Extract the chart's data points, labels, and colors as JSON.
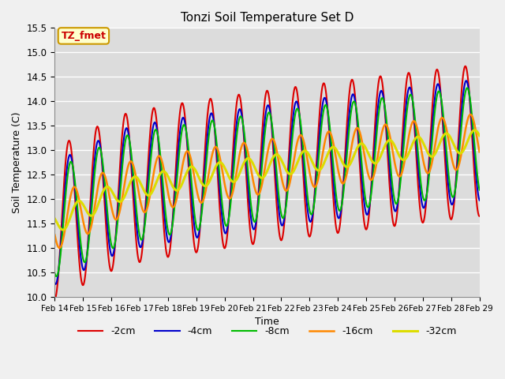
{
  "title": "Tonzi Soil Temperature Set D",
  "xlabel": "Time",
  "ylabel": "Soil Temperature (C)",
  "ylim": [
    10.0,
    15.5
  ],
  "xlim": [
    0,
    15
  ],
  "plot_bg_color": "#dcdcdc",
  "fig_bg_color": "#f0f0f0",
  "annotation_text": "TZ_fmet",
  "annotation_bg": "#ffffcc",
  "annotation_border": "#cc9900",
  "annotation_text_color": "#cc0000",
  "x_tick_labels": [
    "Feb 14",
    "Feb 15",
    "Feb 16",
    "Feb 17",
    "Feb 18",
    "Feb 19",
    "Feb 20",
    "Feb 21",
    "Feb 22",
    "Feb 23",
    "Feb 24",
    "Feb 25",
    "Feb 26",
    "Feb 27",
    "Feb 28",
    "Feb 29"
  ],
  "series_colors": [
    "#dd0000",
    "#0000cc",
    "#00bb00",
    "#ff8800",
    "#dddd00"
  ],
  "series_labels": [
    "-2cm",
    "-4cm",
    "-8cm",
    "-16cm",
    "-32cm"
  ],
  "series_linewidths": [
    1.5,
    1.5,
    1.5,
    1.8,
    2.2
  ],
  "n_points": 1600,
  "trend_start": 11.5,
  "trend_end": 13.2,
  "trend_flat_until": 0.15,
  "trend_flat_value": 12.15,
  "amplitude_2cm": 1.55,
  "amplitude_4cm": 1.25,
  "amplitude_8cm": 1.1,
  "amplitude_16cm": 0.55,
  "amplitude_32cm": 0.22,
  "phase_2cm": 1.57,
  "phase_4cm": 1.77,
  "phase_8cm": 1.97,
  "phase_16cm": 2.7,
  "phase_32cm": 3.6,
  "period_days": 1.0,
  "x_days": 15
}
